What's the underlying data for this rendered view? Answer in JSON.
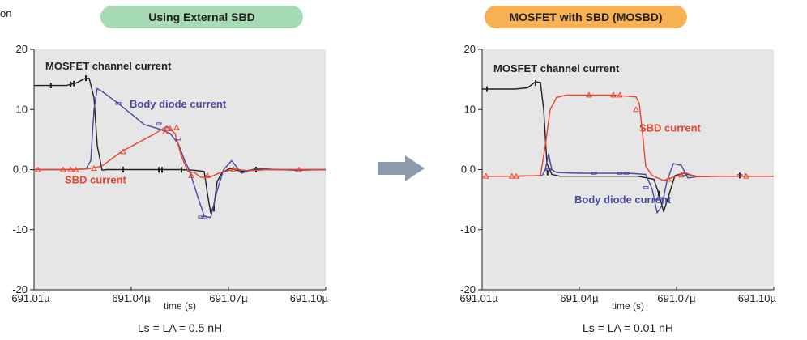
{
  "page": {
    "left_cut_text": "on",
    "arrow_color": "#8c9bad"
  },
  "chart_data": [
    {
      "type": "line",
      "title": "Using External SBD",
      "title_bg": "#a6dbb6",
      "xlabel": "time (s)",
      "ylabel": "",
      "xlim": [
        691.01,
        691.1
      ],
      "ylim": [
        -20,
        20
      ],
      "x_ticks": [
        "691.01µ",
        "691.04µ",
        "691.07µ",
        "691.10µ"
      ],
      "y_ticks": [
        "20",
        "10",
        "0.0",
        "-10",
        "-20"
      ],
      "grid": true,
      "caption": "Ls = LA = 0.5 nH",
      "annotations": [
        {
          "text": "MOSFET channel current",
          "x": 691.0135,
          "y": 16.6,
          "color": "#231f20"
        },
        {
          "text": "Body diode current",
          "x": 691.0395,
          "y": 10.3,
          "color": "#4a49a0"
        },
        {
          "text": "SBD current",
          "x": 691.0195,
          "y": -2.3,
          "color": "#e8432f"
        }
      ],
      "series": [
        {
          "name": "MOSFET channel current",
          "color": "#231f20",
          "x": [
            691.01,
            691.015,
            691.02,
            691.023,
            691.0255,
            691.027,
            691.0285,
            691.0295,
            691.031,
            691.0325,
            691.036,
            691.045,
            691.05,
            691.055,
            691.059,
            691.0625,
            691.0635,
            691.0645,
            691.0655,
            691.0665,
            691.068,
            691.0705,
            691.074,
            691.078,
            691.085,
            691.091,
            691.1
          ],
          "y": [
            14,
            14,
            14,
            14.4,
            15.1,
            15.2,
            12,
            4,
            -0.1,
            0,
            0,
            0,
            0,
            0,
            -0.1,
            -0.3,
            -4,
            -7.2,
            -6,
            -2,
            -0.5,
            0.2,
            -0.3,
            0,
            0,
            -0.1,
            0
          ],
          "markers": [
            [
              691.0152,
              14
            ],
            [
              691.0213,
              14.2
            ],
            [
              691.0223,
              14.3
            ],
            [
              691.026,
              15.2
            ],
            [
              691.0375,
              0
            ],
            [
              691.0485,
              -0.05
            ],
            [
              691.0495,
              -0.05
            ],
            [
              691.0555,
              -0.05
            ],
            [
              691.0655,
              -6.5
            ],
            [
              691.0785,
              0
            ]
          ],
          "marker": "bar"
        },
        {
          "name": "Body diode current",
          "color": "#4a49a0",
          "x": [
            691.01,
            691.02,
            691.026,
            691.0275,
            691.0285,
            691.0295,
            691.031,
            691.036,
            691.044,
            691.049,
            691.052,
            691.0545,
            691.0565,
            691.058,
            691.0605,
            691.0625,
            691.0645,
            691.0665,
            691.0685,
            691.071,
            691.074,
            691.0785,
            691.085,
            691.092,
            691.1
          ],
          "y": [
            0,
            0,
            0.1,
            1.5,
            10,
            13.5,
            13,
            11,
            7.5,
            6.7,
            6,
            4.3,
            1.5,
            -0.2,
            -4.5,
            -7.7,
            -8,
            -3.5,
            0,
            1.5,
            -0.6,
            0.2,
            0,
            0,
            0
          ],
          "markers": [
            [
              691.036,
              11
            ],
            [
              691.0485,
              7.6
            ],
            [
              691.051,
              6.8
            ],
            [
              691.0545,
              5.1
            ],
            [
              691.0615,
              -7.9
            ],
            [
              691.0625,
              -8
            ],
            [
              691.0915,
              -0.2
            ]
          ],
          "marker": "square"
        },
        {
          "name": "SBD current",
          "color": "#e8432f",
          "x": [
            691.01,
            691.015,
            691.021,
            691.026,
            691.0285,
            691.0295,
            691.031,
            691.037,
            691.047,
            691.051,
            691.0535,
            691.0555,
            691.0575,
            691.0595,
            691.0615,
            691.0645,
            691.0675,
            691.072,
            691.076,
            691.082,
            691.09,
            691.1
          ],
          "y": [
            0,
            0,
            0,
            0.1,
            0.3,
            0.4,
            0.6,
            3,
            5.9,
            7.2,
            6,
            2.2,
            -0.3,
            -0.5,
            -1.3,
            -1.2,
            -0.5,
            0.1,
            -0.2,
            0,
            0,
            0
          ],
          "markers": [
            [
              691.0112,
              0
            ],
            [
              691.019,
              0
            ],
            [
              691.0213,
              0
            ],
            [
              691.0229,
              0
            ],
            [
              691.0285,
              0.2
            ],
            [
              691.0375,
              3
            ],
            [
              691.0505,
              6.3
            ],
            [
              691.052,
              6.8
            ],
            [
              691.054,
              7
            ],
            [
              691.0585,
              -1
            ],
            [
              691.0635,
              -1
            ],
            [
              691.0715,
              0.1
            ],
            [
              691.0918,
              0
            ]
          ],
          "marker": "triangle"
        }
      ]
    },
    {
      "type": "line",
      "title": "MOSFET with SBD (MOSBD)",
      "title_bg": "#f8b152",
      "xlabel": "time (s)",
      "ylabel": "",
      "xlim": [
        691.01,
        691.1
      ],
      "ylim": [
        -20,
        20
      ],
      "x_ticks": [
        "691.01µ",
        "691.04µ",
        "691.07µ",
        "691.10µ"
      ],
      "y_ticks": [
        "20",
        "10",
        "0.0",
        "-10",
        "-20"
      ],
      "grid": true,
      "caption": "Ls = LA = 0.01 nH",
      "annotations": [
        {
          "text": "MOSFET channel current",
          "x": 691.0135,
          "y": 16.2,
          "color": "#231f20"
        },
        {
          "text": "SBD current",
          "x": 691.0585,
          "y": 6.3,
          "color": "#e8432f"
        },
        {
          "text": "Body diode current",
          "x": 691.0385,
          "y": -5.6,
          "color": "#4a49a0"
        }
      ],
      "series": [
        {
          "name": "MOSFET channel current",
          "color": "#231f20",
          "x": [
            691.01,
            691.02,
            691.024,
            691.0265,
            691.028,
            691.029,
            691.03,
            691.0315,
            691.034,
            691.05,
            691.058,
            691.063,
            691.0645,
            691.066,
            691.0675,
            691.0695,
            691.072,
            691.076,
            691.085,
            691.1
          ],
          "y": [
            13.4,
            13.4,
            13.6,
            14.6,
            14.5,
            10,
            1,
            -0.8,
            -1.1,
            -1.1,
            -1.1,
            -1.6,
            -4,
            -7,
            -4.5,
            -1,
            -0.6,
            -1.1,
            -1.1,
            -1.1
          ],
          "markers": [
            [
              691.0115,
              13.4
            ],
            [
              691.0265,
              14.4
            ],
            [
              691.0302,
              -0.5
            ],
            [
              691.0645,
              -4
            ],
            [
              691.0895,
              -1
            ]
          ],
          "marker": "bar"
        },
        {
          "name": "Body diode current",
          "color": "#4a49a0",
          "x": [
            691.01,
            691.02,
            691.0285,
            691.0295,
            691.0305,
            691.0315,
            691.033,
            691.04,
            691.055,
            691.0605,
            691.0625,
            691.064,
            691.0655,
            691.067,
            691.069,
            691.0715,
            691.0735,
            691.076,
            691.082,
            691.1
          ],
          "y": [
            -1.1,
            -1.1,
            -1,
            0,
            2.6,
            0,
            -0.5,
            -0.6,
            -0.6,
            -0.8,
            -3.3,
            -7.2,
            -6,
            -2,
            1,
            0.7,
            -1.4,
            -1.2,
            -1.1,
            -1.1
          ],
          "markers": [
            [
              691.0305,
              0
            ],
            [
              691.0445,
              -0.6
            ],
            [
              691.0525,
              -0.6
            ],
            [
              691.0545,
              -0.6
            ],
            [
              691.0605,
              -3
            ],
            [
              691.0648,
              -4.8
            ],
            [
              691.0725,
              -0.8
            ],
            [
              691.0895,
              -1
            ]
          ],
          "marker": "square"
        },
        {
          "name": "SBD current",
          "color": "#e8432f",
          "x": [
            691.01,
            691.02,
            691.028,
            691.0295,
            691.031,
            691.033,
            691.036,
            691.05,
            691.0575,
            691.0585,
            691.0595,
            691.0605,
            691.0625,
            691.066,
            691.0695,
            691.0725,
            691.076,
            691.085,
            691.1
          ],
          "y": [
            -1.1,
            -1.1,
            -1,
            4,
            10,
            12,
            12.4,
            12.4,
            12.1,
            11,
            6,
            0.5,
            -1,
            -1.8,
            -1.2,
            -0.5,
            -1.2,
            -1.1,
            -1.1
          ],
          "markers": [
            [
              691.0112,
              -1.1
            ],
            [
              691.0192,
              -1.1
            ],
            [
              691.0205,
              -1.1
            ],
            [
              691.043,
              12.4
            ],
            [
              691.0505,
              12.4
            ],
            [
              691.0525,
              12.4
            ],
            [
              691.0575,
              10
            ],
            [
              691.0675,
              -1.6
            ],
            [
              691.0715,
              -0.9
            ],
            [
              691.0915,
              -1.1
            ]
          ],
          "marker": "triangle"
        }
      ]
    }
  ]
}
